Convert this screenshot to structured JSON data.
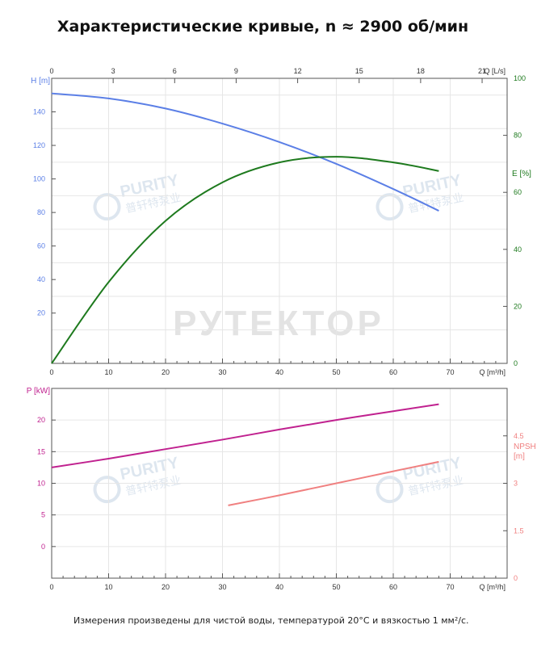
{
  "title": "Характеристические кривые, n ≈ 2900 об/мин",
  "footnote": "Измерения произведены для чистой воды, температурой 20°C и вязкостью 1 мм²/с.",
  "watermarks": {
    "main": "РУТЕКТОР",
    "brand_en": "PURITY",
    "brand_cn": "普轩特泵业"
  },
  "colors": {
    "head": "#5b7fe6",
    "efficiency": "#1e7a1e",
    "power": "#c0218f",
    "npsh": "#f08080",
    "axis": "#555555",
    "grid": "#e6e6e6"
  },
  "chart_data": [
    {
      "type": "line",
      "title": "",
      "xlabel": "Q [m³/h]",
      "x2label": "Q [L/s]",
      "xlim": [
        0,
        80
      ],
      "x_ticks": [
        0,
        10,
        20,
        30,
        40,
        50,
        60,
        70
      ],
      "x2lim": [
        0,
        22.22
      ],
      "x2_ticks": [
        0,
        3,
        6,
        9,
        12,
        15,
        18,
        21
      ],
      "ylabel": "H [m]",
      "ylim": [
        -10,
        160
      ],
      "y_ticks": [
        20,
        40,
        60,
        80,
        100,
        120,
        140
      ],
      "y2label": "E [%]",
      "y2lim": [
        0,
        100
      ],
      "y2_ticks": [
        0,
        20,
        40,
        60,
        80,
        100
      ],
      "grid": true,
      "series": [
        {
          "name": "H [m]",
          "axis": "left",
          "x": [
            0,
            10,
            20,
            30,
            40,
            50,
            60,
            68
          ],
          "y": [
            151,
            148,
            142,
            133,
            122,
            109,
            94,
            81
          ]
        },
        {
          "name": "E [%]",
          "axis": "right",
          "x": [
            0,
            10,
            20,
            30,
            40,
            50,
            60,
            68
          ],
          "y": [
            0,
            28.5,
            50,
            63.5,
            70.5,
            72.5,
            70.5,
            67.5
          ]
        }
      ]
    },
    {
      "type": "line",
      "title": "",
      "xlabel": "Q [m³/h]",
      "xlim": [
        0,
        80
      ],
      "x_ticks": [
        0,
        10,
        20,
        30,
        40,
        50,
        60,
        70
      ],
      "ylabel": "P [kW]",
      "ylim": [
        -5,
        25
      ],
      "y_ticks": [
        0,
        5,
        10,
        15,
        20
      ],
      "y2label": "NPSH [m]",
      "y2lim": [
        0,
        6
      ],
      "y2_ticks": [
        0,
        1.5,
        3,
        4.5
      ],
      "grid": true,
      "series": [
        {
          "name": "P [kW]",
          "axis": "left",
          "x": [
            0,
            10,
            20,
            30,
            40,
            50,
            60,
            68
          ],
          "y": [
            12.5,
            13.9,
            15.4,
            16.9,
            18.5,
            20.0,
            21.4,
            22.5
          ]
        },
        {
          "name": "NPSH [m]",
          "axis": "right",
          "x": [
            31,
            40,
            50,
            60,
            68
          ],
          "y": [
            2.3,
            2.62,
            3.0,
            3.38,
            3.68
          ]
        }
      ]
    }
  ]
}
